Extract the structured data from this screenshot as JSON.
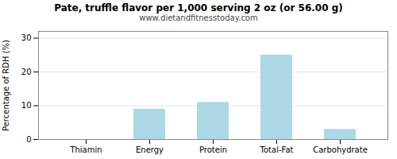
{
  "chart_data": {
    "type": "bar",
    "title": "Pate, truffle flavor per 1,000 serving 2 oz (or 56.00 g)",
    "subtitle": "www.dietandfitnesstoday.com",
    "categories": [
      "Thiamin",
      "Energy",
      "Protein",
      "Total-Fat",
      "Carbohydrate"
    ],
    "values": [
      0,
      9,
      11,
      25,
      3
    ],
    "color": "#add8e6",
    "ylabel": "Percentage of RDH (%)",
    "ylim": [
      0,
      32
    ],
    "yticks": [
      0,
      10,
      20,
      30
    ],
    "grid": true
  }
}
